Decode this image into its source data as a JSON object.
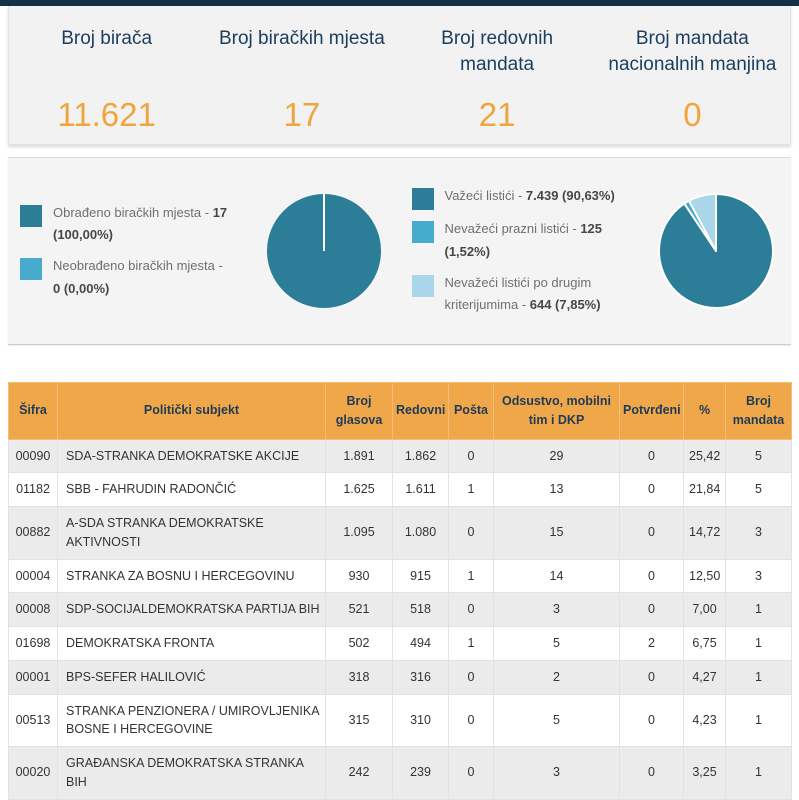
{
  "theme": {
    "topbar_color": "#15314a",
    "accent_orange": "#efa43d",
    "navy_text": "#1b3d5f",
    "table_header_bg": "#f0a74a"
  },
  "stats": [
    {
      "label": "Broj birača",
      "value": "11.621"
    },
    {
      "label": "Broj biračkih mjesta",
      "value": "17"
    },
    {
      "label": "Broj redovnih mandata",
      "value": "21"
    },
    {
      "label": "Broj mandata nacionalnih manjina",
      "value": "0"
    }
  ],
  "charts": {
    "processed": {
      "legend": [
        {
          "label": "Obrađeno biračkih mjesta -",
          "value": "17 (100,00%)",
          "color": "#2b7d98"
        },
        {
          "label": "Neobrađeno biračkih mjesta -",
          "value": "0 (0,00%)",
          "color": "#47abce"
        }
      ]
    },
    "ballots": {
      "legend": [
        {
          "label": "Važeći listići -",
          "value": "7.439 (90,63%)",
          "color": "#2b7d98"
        },
        {
          "label": "Nevažeći prazni listići -",
          "value": "125 (1,52%)",
          "color": "#47abce"
        },
        {
          "label": "Nevažeći listići po drugim kriterijumima -",
          "value": "644 (7,85%)",
          "color": "#a9d6e8"
        }
      ]
    }
  },
  "chart_data": [
    {
      "type": "pie",
      "labels": [
        "Obrađeno biračkih mjesta",
        "Neobrađeno biračkih mjesta"
      ],
      "values": [
        17,
        0
      ],
      "percent_labels": [
        "100,00%",
        "0,00%"
      ],
      "colors": [
        "#2b7d98",
        "#47abce"
      ],
      "legend_position": "left"
    },
    {
      "type": "pie",
      "labels": [
        "Važeći listići",
        "Nevažeći prazni listići",
        "Nevažeći listići po drugim kriterijumima"
      ],
      "values": [
        7439,
        125,
        644
      ],
      "percent_labels": [
        "90,63%",
        "1,52%",
        "7,85%"
      ],
      "colors": [
        "#2b7d98",
        "#47abce",
        "#a9d6e8"
      ],
      "legend_position": "left"
    }
  ],
  "table": {
    "headers": [
      "Šifra",
      "Politički subjekt",
      "Broj glasova",
      "Redovni",
      "Pošta",
      "Odsustvo, mobilni tim i DKP",
      "Potvrđeni",
      "%",
      "Broj mandata"
    ],
    "rows": [
      [
        "00090",
        "SDA-STRANKA DEMOKRATSKE AKCIJE",
        "1.891",
        "1.862",
        "0",
        "29",
        "0",
        "25,42",
        "5"
      ],
      [
        "01182",
        "SBB - FAHRUDIN RADONČIĆ",
        "1.625",
        "1.611",
        "1",
        "13",
        "0",
        "21,84",
        "5"
      ],
      [
        "00882",
        "A-SDA STRANKA DEMOKRATSKE AKTIVNOSTI",
        "1.095",
        "1.080",
        "0",
        "15",
        "0",
        "14,72",
        "3"
      ],
      [
        "00004",
        "STRANKA ZA BOSNU I HERCEGOVINU",
        "930",
        "915",
        "1",
        "14",
        "0",
        "12,50",
        "3"
      ],
      [
        "00008",
        "SDP-SOCIJALDEMOKRATSKA PARTIJA BIH",
        "521",
        "518",
        "0",
        "3",
        "0",
        "7,00",
        "1"
      ],
      [
        "01698",
        "DEMOKRATSKA FRONTA",
        "502",
        "494",
        "1",
        "5",
        "2",
        "6,75",
        "1"
      ],
      [
        "00001",
        "BPS-SEFER HALILOVIĆ",
        "318",
        "316",
        "0",
        "2",
        "0",
        "4,27",
        "1"
      ],
      [
        "00513",
        "STRANKA PENZIONERA / UMIROVLJENIKA BOSNE I HERCEGOVINE",
        "315",
        "310",
        "0",
        "5",
        "0",
        "4,23",
        "1"
      ],
      [
        "00020",
        "GRAĐANSKA DEMOKRATSKA STRANKA BIH",
        "242",
        "239",
        "0",
        "3",
        "0",
        "3,25",
        "1"
      ]
    ]
  }
}
